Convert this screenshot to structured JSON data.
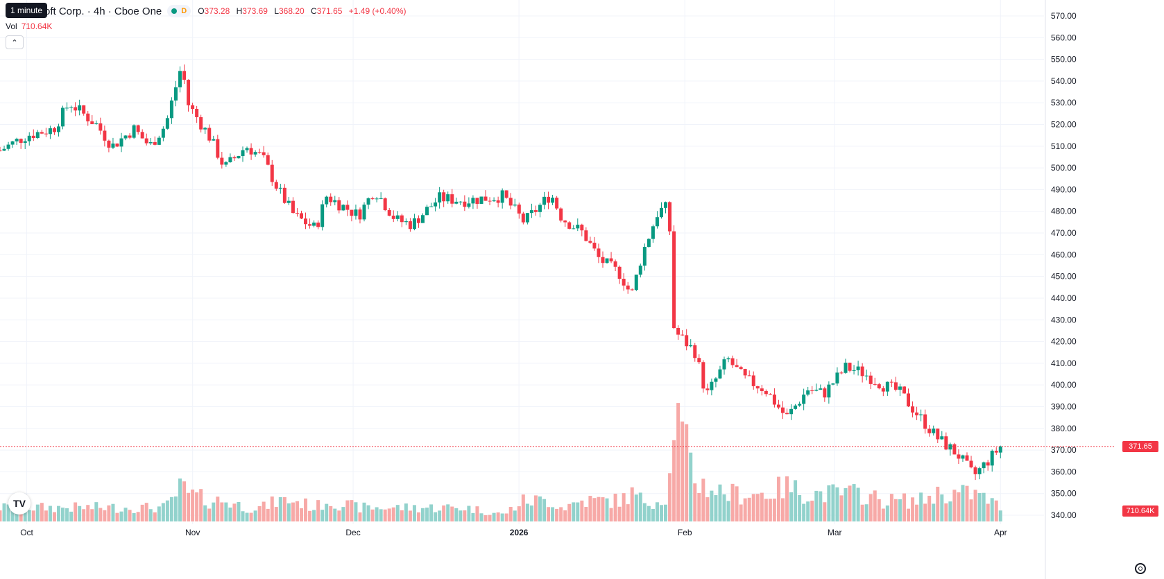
{
  "tooltip": "1 minute",
  "symbol": {
    "title": "oft Corp. · 4h · Cboe One",
    "status_letter": "D",
    "open_label": "O",
    "open": "373.28",
    "high_label": "H",
    "high": "373.69",
    "low_label": "L",
    "low": "368.20",
    "close_label": "C",
    "close": "371.65",
    "change": "+1.49 (+0.40%)"
  },
  "volume": {
    "label": "Vol",
    "value": "710.64K"
  },
  "price_tag": "371.65",
  "volume_tag": "710.64K",
  "logo_text": "TV",
  "colors": {
    "up": "#089981",
    "down": "#F23645",
    "up_volume": "#92D2CC",
    "down_volume": "#F7A9A7",
    "grid": "#F0F3FA",
    "text": "#131722"
  },
  "chart_data": {
    "type": "candlestick",
    "y_axis": {
      "ticks": [
        "570.00",
        "560.00",
        "550.00",
        "540.00",
        "530.00",
        "520.00",
        "510.00",
        "500.00",
        "490.00",
        "480.00",
        "470.00",
        "460.00",
        "450.00",
        "440.00",
        "430.00",
        "420.00",
        "410.00",
        "400.00",
        "390.00",
        "380.00",
        "370.00",
        "360.00",
        "350.00",
        "340.00"
      ],
      "range": [
        340,
        570
      ]
    },
    "x_axis": {
      "ticks": [
        "Oct",
        "Nov",
        "Dec",
        "2026",
        "Feb",
        "Mar",
        "Apr"
      ],
      "range": [
        "2025-09-26",
        "2026-04-02"
      ]
    },
    "current_price": 371.65,
    "series": [
      {
        "date": "2025-09-26",
        "close": 508,
        "volume": 2
      },
      {
        "date": "2025-10-01",
        "close": 515,
        "volume": 2
      },
      {
        "date": "2025-10-06",
        "close": 518,
        "volume": 2
      },
      {
        "date": "2025-10-09",
        "close": 530,
        "volume": 2
      },
      {
        "date": "2025-10-14",
        "close": 520,
        "volume": 2
      },
      {
        "date": "2025-10-17",
        "close": 510,
        "volume": 2
      },
      {
        "date": "2025-10-21",
        "close": 518,
        "volume": 2
      },
      {
        "date": "2025-10-24",
        "close": 510,
        "volume": 2
      },
      {
        "date": "2025-10-27",
        "close": 520,
        "volume": 2
      },
      {
        "date": "2025-10-30",
        "close": 548,
        "volume": 5
      },
      {
        "date": "2025-10-31",
        "close": 530,
        "volume": 4
      },
      {
        "date": "2025-11-04",
        "close": 515,
        "volume": 3
      },
      {
        "date": "2025-11-07",
        "close": 500,
        "volume": 3
      },
      {
        "date": "2025-11-11",
        "close": 510,
        "volume": 2
      },
      {
        "date": "2025-11-14",
        "close": 505,
        "volume": 2
      },
      {
        "date": "2025-11-17",
        "close": 490,
        "volume": 3
      },
      {
        "date": "2025-11-20",
        "close": 478,
        "volume": 3
      },
      {
        "date": "2025-11-24",
        "close": 472,
        "volume": 2
      },
      {
        "date": "2025-11-26",
        "close": 487,
        "volume": 3
      },
      {
        "date": "2025-12-02",
        "close": 478,
        "volume": 2
      },
      {
        "date": "2025-12-05",
        "close": 490,
        "volume": 2
      },
      {
        "date": "2025-12-09",
        "close": 476,
        "volume": 2
      },
      {
        "date": "2025-12-12",
        "close": 474,
        "volume": 2
      },
      {
        "date": "2025-12-17",
        "close": 486,
        "volume": 2
      },
      {
        "date": "2025-12-22",
        "close": 485,
        "volume": 2
      },
      {
        "date": "2025-12-29",
        "close": 487,
        "volume": 1
      },
      {
        "date": "2026-01-02",
        "close": 475,
        "volume": 3
      },
      {
        "date": "2026-01-07",
        "close": 488,
        "volume": 3
      },
      {
        "date": "2026-01-09",
        "close": 477,
        "volume": 2
      },
      {
        "date": "2026-01-13",
        "close": 470,
        "volume": 3
      },
      {
        "date": "2026-01-16",
        "close": 458,
        "volume": 3
      },
      {
        "date": "2026-01-20",
        "close": 451,
        "volume": 3
      },
      {
        "date": "2026-01-22",
        "close": 441,
        "volume": 4
      },
      {
        "date": "2026-01-24",
        "close": 460,
        "volume": 3
      },
      {
        "date": "2026-01-27",
        "close": 480,
        "volume": 3
      },
      {
        "date": "2026-01-29",
        "close": 482,
        "volume": 4
      },
      {
        "date": "2026-01-30",
        "close": 425,
        "volume": 16
      },
      {
        "date": "2026-02-03",
        "close": 415,
        "volume": 6
      },
      {
        "date": "2026-02-05",
        "close": 395,
        "volume": 5
      },
      {
        "date": "2026-02-09",
        "close": 412,
        "volume": 4
      },
      {
        "date": "2026-02-12",
        "close": 403,
        "volume": 4
      },
      {
        "date": "2026-02-16",
        "close": 398,
        "volume": 4
      },
      {
        "date": "2026-02-20",
        "close": 385,
        "volume": 5
      },
      {
        "date": "2026-02-24",
        "close": 398,
        "volume": 4
      },
      {
        "date": "2026-02-27",
        "close": 396,
        "volume": 4
      },
      {
        "date": "2026-03-03",
        "close": 408,
        "volume": 4
      },
      {
        "date": "2026-03-06",
        "close": 406,
        "volume": 4
      },
      {
        "date": "2026-03-10",
        "close": 400,
        "volume": 3
      },
      {
        "date": "2026-03-13",
        "close": 397,
        "volume": 3
      },
      {
        "date": "2026-03-17",
        "close": 385,
        "volume": 3
      },
      {
        "date": "2026-03-20",
        "close": 376,
        "volume": 4
      },
      {
        "date": "2026-03-24",
        "close": 368,
        "volume": 4
      },
      {
        "date": "2026-03-27",
        "close": 358,
        "volume": 4
      },
      {
        "date": "2026-03-30",
        "close": 366,
        "volume": 3
      },
      {
        "date": "2026-04-01",
        "close": 371.65,
        "volume": 2
      }
    ]
  }
}
